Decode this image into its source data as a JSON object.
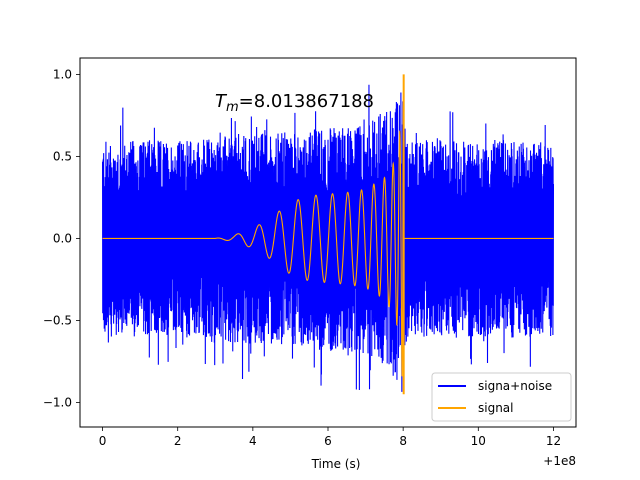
{
  "chart_data": {
    "type": "line",
    "title": "",
    "annotation": {
      "prefix": "T",
      "subscript": "m",
      "suffix": "=8.013867188"
    },
    "xlabel": "Time (s)",
    "ylabel": "",
    "x_offset_label": "+1e8",
    "xlim": [
      -0.6,
      12.6
    ],
    "ylim": [
      -1.15,
      1.1
    ],
    "x_ticks": [
      0,
      2,
      4,
      6,
      8,
      10,
      12
    ],
    "x_tick_labels": [
      "0",
      "2",
      "4",
      "6",
      "8",
      "10",
      "12"
    ],
    "y_ticks": [
      -1.0,
      -0.5,
      0.0,
      0.5,
      1.0
    ],
    "y_tick_labels": [
      "−1.0",
      "−0.5",
      "0.0",
      "0.5",
      "1.0"
    ],
    "grid": false,
    "legend_position": "bottom-right",
    "series": [
      {
        "name": "signa+noise",
        "color": "#0000ff",
        "x_range": [
          0,
          12
        ],
        "description_points": {
          "x": [
            0,
            2,
            3,
            4,
            5,
            6,
            7,
            7.5,
            7.9,
            8.0,
            8.1,
            10,
            12
          ],
          "upper_envelope": [
            0.6,
            0.6,
            0.62,
            0.65,
            0.65,
            0.68,
            0.7,
            0.78,
            0.9,
            0.95,
            0.6,
            0.6,
            0.6
          ],
          "lower_envelope": [
            -0.6,
            -0.6,
            -0.62,
            -0.65,
            -0.65,
            -0.68,
            -0.7,
            -0.78,
            -0.9,
            -0.95,
            -0.6,
            -0.6,
            -0.6
          ],
          "peak_max": 1.0,
          "peak_min": -1.03
        }
      },
      {
        "name": "signal",
        "color": "#ffa500",
        "x_range": [
          0,
          12
        ],
        "chirp_start": 3.0,
        "merger_time": 8.013867188,
        "description_points": {
          "x": [
            0,
            3,
            3.5,
            4,
            4.5,
            5,
            5.5,
            6,
            6.5,
            7,
            7.5,
            7.8,
            7.95,
            8.0,
            8.05,
            12
          ],
          "envelope": [
            0,
            0,
            0.02,
            0.06,
            0.13,
            0.22,
            0.26,
            0.27,
            0.28,
            0.3,
            0.37,
            0.48,
            0.72,
            1.0,
            0,
            0
          ]
        }
      }
    ]
  }
}
